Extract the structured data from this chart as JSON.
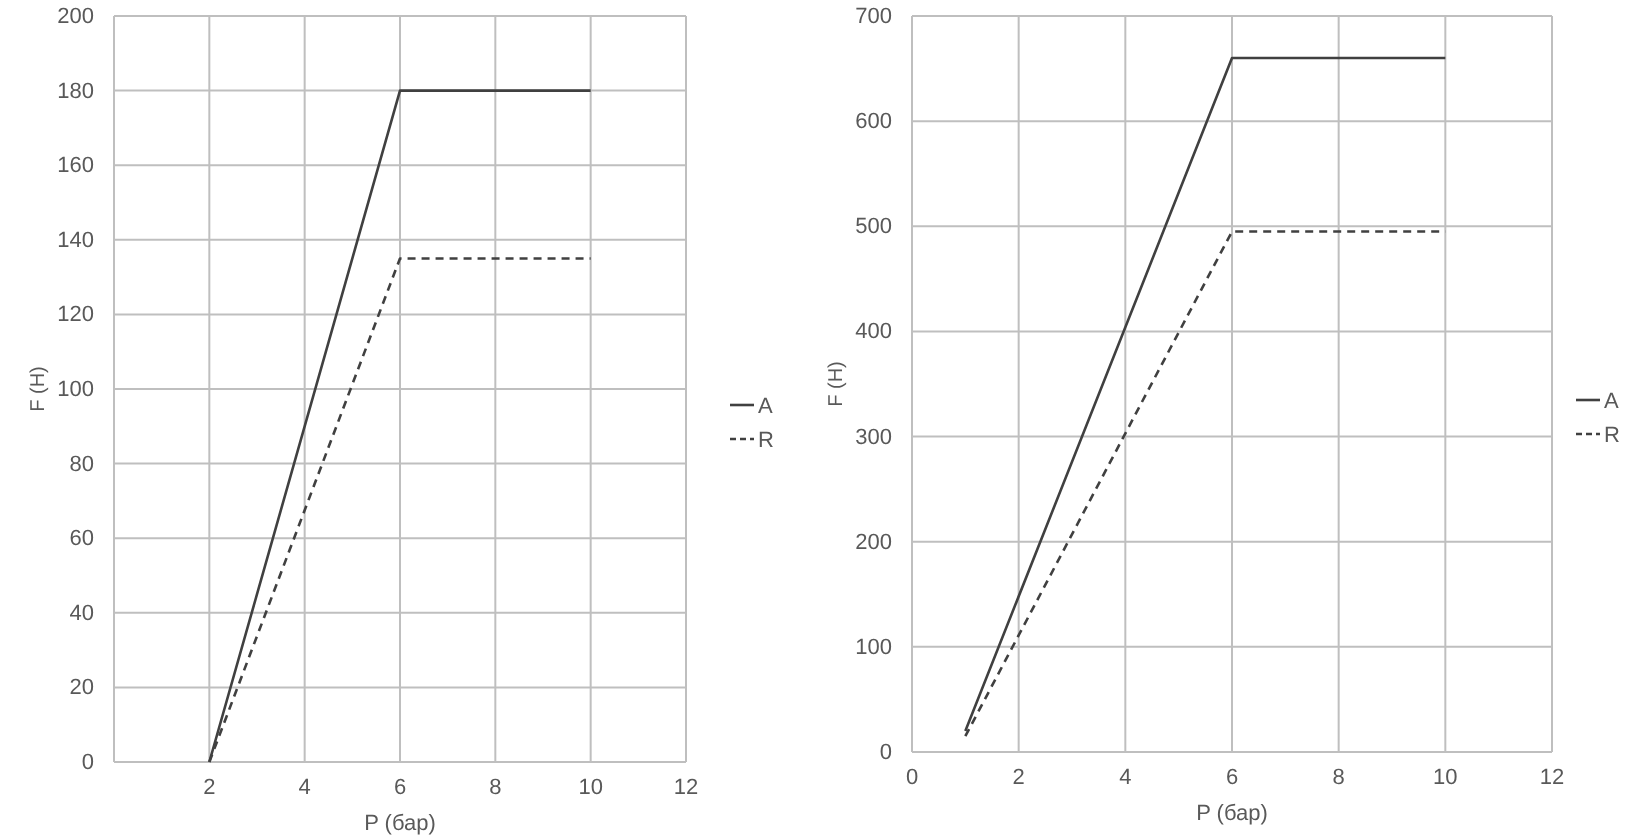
{
  "chart_data": [
    {
      "type": "line",
      "xlabel": "P (бар)",
      "ylabel": "F (H)",
      "xlim": [
        0,
        12
      ],
      "xticks": [
        2,
        4,
        6,
        8,
        10,
        12
      ],
      "ylim": [
        0,
        200
      ],
      "yticks": [
        0,
        20,
        40,
        60,
        80,
        100,
        120,
        140,
        160,
        180,
        200
      ],
      "grid": true,
      "legend": "right",
      "marker": "none",
      "series": [
        {
          "name": "A",
          "color": "#404040",
          "line_style": "solid",
          "x": [
            2,
            6,
            10
          ],
          "values": [
            0,
            180,
            180
          ]
        },
        {
          "name": "R",
          "color": "#404040",
          "line_style": "dashed",
          "x": [
            2,
            6,
            10
          ],
          "values": [
            0,
            135,
            135
          ]
        }
      ]
    },
    {
      "type": "line",
      "xlabel": "P (бар)",
      "ylabel": "F (H)",
      "xlim": [
        0,
        12
      ],
      "xticks": [
        0,
        2,
        4,
        6,
        8,
        10,
        12
      ],
      "ylim": [
        0,
        700
      ],
      "yticks": [
        0,
        100,
        200,
        300,
        400,
        500,
        600,
        700
      ],
      "grid": true,
      "legend": "right",
      "marker": "none",
      "series": [
        {
          "name": "A",
          "color": "#404040",
          "line_style": "solid",
          "x": [
            1,
            6,
            10
          ],
          "values": [
            20,
            660,
            660
          ]
        },
        {
          "name": "R",
          "color": "#404040",
          "line_style": "dashed",
          "x": [
            1,
            6,
            10
          ],
          "values": [
            15,
            495,
            495
          ]
        }
      ]
    }
  ]
}
